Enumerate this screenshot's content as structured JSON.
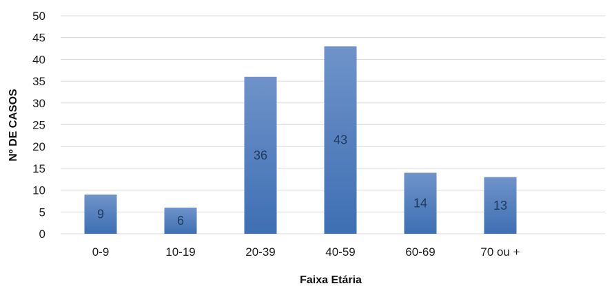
{
  "chart_data": {
    "type": "bar",
    "categories": [
      "0-9",
      "10-19",
      "20-39",
      "40-59",
      "60-69",
      "70 ou +"
    ],
    "values": [
      9,
      6,
      36,
      43,
      14,
      13
    ],
    "data_labels": [
      "9",
      "6",
      "36",
      "43",
      "14",
      "13"
    ],
    "title": "",
    "xlabel": "Faixa Etária",
    "ylabel": "Nº DE CASOS",
    "ylim": [
      0,
      50
    ],
    "yticks": [
      0,
      5,
      10,
      15,
      20,
      25,
      30,
      35,
      40,
      45,
      50
    ],
    "ytick_labels": [
      "0",
      "5",
      "10",
      "15",
      "20",
      "25",
      "30",
      "35",
      "40",
      "45",
      "50"
    ],
    "grid": true,
    "legend": "none",
    "colors": {
      "bar_top": "#6f93c9",
      "bar_bottom": "#3e6fb3",
      "grid": "#d9d9d9",
      "data_label": "#1f3a5f"
    }
  }
}
